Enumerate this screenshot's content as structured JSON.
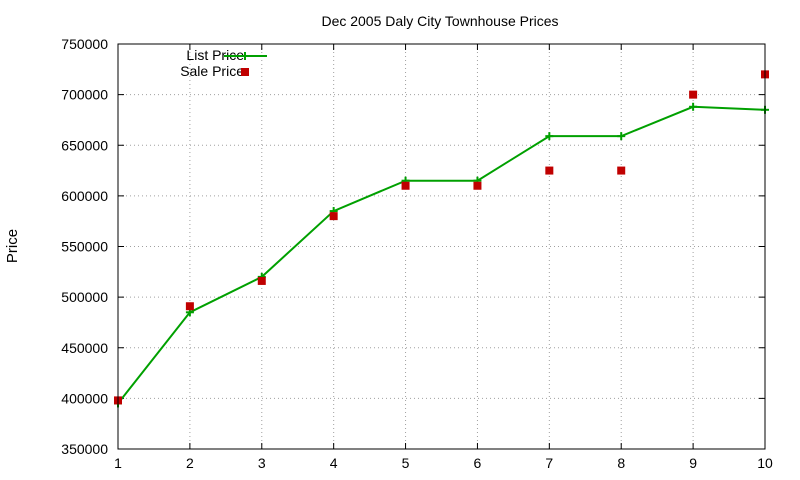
{
  "chart_data": {
    "type": "line",
    "title": "Dec 2005 Daly City Townhouse Prices",
    "xlabel": "",
    "ylabel": "Price",
    "x": [
      1,
      2,
      3,
      4,
      5,
      6,
      7,
      8,
      9,
      10
    ],
    "xlim": [
      1,
      10
    ],
    "ylim": [
      350000,
      750000
    ],
    "xticks": [
      1,
      2,
      3,
      4,
      5,
      6,
      7,
      8,
      9,
      10
    ],
    "yticks": [
      350000,
      400000,
      450000,
      500000,
      550000,
      600000,
      650000,
      700000,
      750000
    ],
    "grid": true,
    "legend_position": "top-left",
    "series": [
      {
        "name": "List Price",
        "style": "linespoints",
        "marker": "plus",
        "color": "#00a000",
        "values": [
          395000,
          485000,
          520000,
          585000,
          615000,
          615000,
          659000,
          659000,
          688000,
          685000
        ]
      },
      {
        "name": "Sale Price",
        "style": "points",
        "marker": "square",
        "color": "#c00000",
        "values": [
          398000,
          491000,
          516000,
          580000,
          610000,
          610000,
          625000,
          625000,
          700000,
          720000
        ]
      }
    ]
  }
}
